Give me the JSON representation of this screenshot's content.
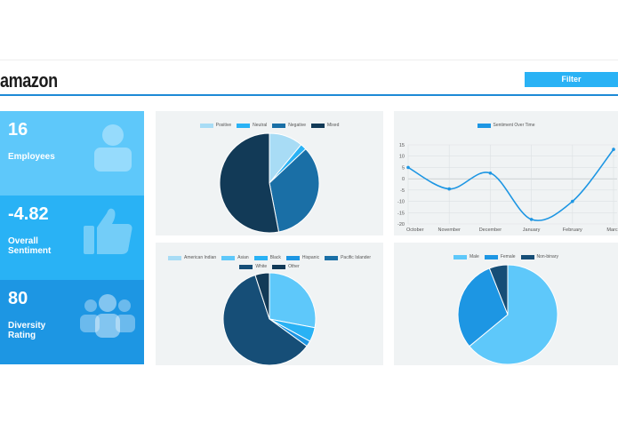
{
  "header": {
    "logo": "amazon",
    "filter_label": "Filter"
  },
  "stats": [
    {
      "value": "16",
      "label_lines": [
        "Employees"
      ],
      "icon": "person-icon"
    },
    {
      "value": "-4.82",
      "label_lines": [
        "Overall",
        "Sentiment"
      ],
      "icon": "thumbs-up-icon"
    },
    {
      "value": "80",
      "label_lines": [
        "Diversity",
        "Rating"
      ],
      "icon": "group-icon"
    }
  ],
  "colors": {
    "stat1": "#5ec8fa",
    "stat2": "#29b2f5",
    "stat3": "#1d96e3",
    "accent": "#1d8ad6",
    "card_bg": "#f0f3f4"
  },
  "chart_data": [
    {
      "type": "pie",
      "title": "",
      "categories": [
        "Positive",
        "Neutral",
        "Negative",
        "Mixed"
      ],
      "values": [
        11,
        2,
        34,
        53
      ],
      "colors": [
        "#a8dcf5",
        "#29b2f5",
        "#1a6fa6",
        "#123a57"
      ],
      "legend": "top"
    },
    {
      "type": "line",
      "title": "",
      "series": [
        {
          "name": "Sentiment Over Time",
          "values": [
            5,
            -4.5,
            2.5,
            -18,
            -10,
            13
          ]
        }
      ],
      "categories": [
        "October",
        "November",
        "December",
        "January",
        "February",
        "March"
      ],
      "ylim": [
        -20,
        15
      ],
      "yticks": [
        15,
        10,
        5,
        0,
        -5,
        -10,
        -15,
        -20
      ],
      "grid": true,
      "color": "#1d96e3",
      "legend": "top"
    },
    {
      "type": "pie",
      "title": "",
      "categories": [
        "American Indian",
        "Asian",
        "Black",
        "Hispanic",
        "Pacific Islander",
        "White",
        "Other"
      ],
      "values": [
        0,
        28,
        5,
        2,
        0,
        60,
        5
      ],
      "colors": [
        "#a8dcf5",
        "#5ec8fa",
        "#29b2f5",
        "#1d96e3",
        "#1a6fa6",
        "#164e77",
        "#123a57"
      ],
      "legend": "top"
    },
    {
      "type": "pie",
      "title": "",
      "categories": [
        "Male",
        "Female",
        "Non-binary"
      ],
      "values": [
        64,
        30,
        6
      ],
      "colors": [
        "#5ec8fa",
        "#1d96e3",
        "#164e77"
      ],
      "legend": "top"
    }
  ]
}
